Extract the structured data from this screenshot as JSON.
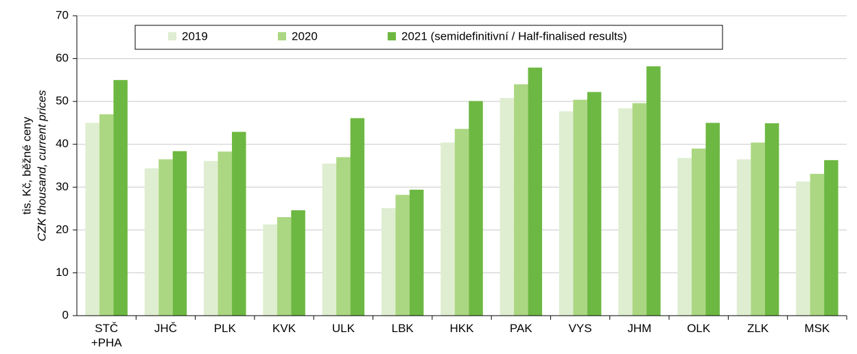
{
  "chart_data": {
    "type": "bar",
    "y_label": "tis. Kč, běžné ceny",
    "y_label_en": "CZK thousand, current prices",
    "categories": [
      "STČ\n+PHA",
      "JHČ",
      "PLK",
      "KVK",
      "ULK",
      "LBK",
      "HKK",
      "PAK",
      "VYS",
      "JHM",
      "OLK",
      "ZLK",
      "MSK"
    ],
    "series": [
      {
        "name": "2019",
        "color": "#dfeed1",
        "values": [
          45,
          34.4,
          36.1,
          21.3,
          35.5,
          25.1,
          40.4,
          50.8,
          47.7,
          48.4,
          36.8,
          36.5,
          31.3
        ]
      },
      {
        "name": "2020",
        "color": "#acd782",
        "values": [
          47,
          36.5,
          38.3,
          23,
          37,
          28.2,
          43.6,
          54,
          50.4,
          49.6,
          39,
          40.4,
          33.1
        ]
      },
      {
        "name": "2021 (semidefinitivní / Half-finalised results)",
        "color": "#6db842",
        "values": [
          55,
          38.4,
          42.9,
          24.6,
          46.1,
          29.4,
          50.1,
          57.9,
          52.2,
          58.2,
          45,
          44.9,
          36.3
        ]
      }
    ],
    "ylim": [
      0,
      70
    ],
    "yticks": [
      0,
      10,
      20,
      30,
      40,
      50,
      60,
      70
    ],
    "grid": true
  }
}
